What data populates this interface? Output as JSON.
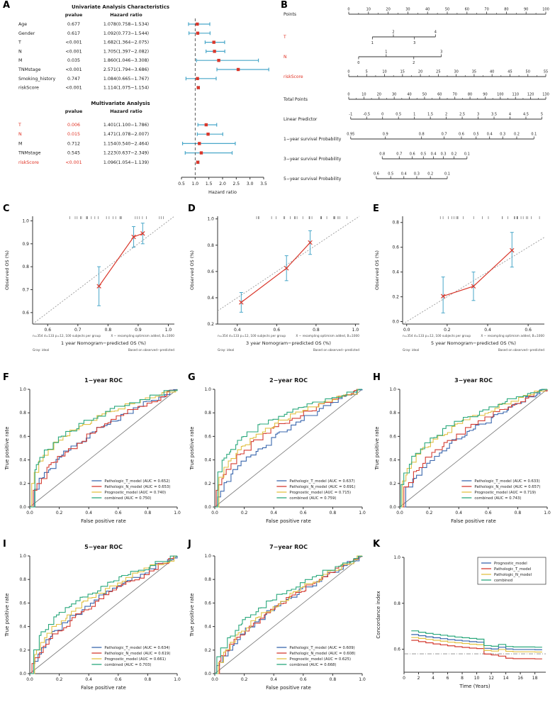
{
  "palette": {
    "blue": "#3a67ad",
    "red": "#d43c32",
    "yellow": "#e2c144",
    "green": "#2aa87c",
    "forest_marker": "#d9372b",
    "forest_whisker": "#49a7c9",
    "cal_line": "#d9372b",
    "cal_err": "#49a7c9",
    "sig_red": "#e03022",
    "text": "#1a1a1a"
  },
  "chart_data": [
    {
      "panel": "A",
      "type": "forest",
      "xlabel": "Hazard ratio",
      "x_ticks": [
        0.5,
        1.0,
        1.5,
        2.0,
        2.5,
        3.0,
        3.5
      ],
      "ref_line": 1.0,
      "sections": [
        {
          "title": "Univariate Analysis Characteristics",
          "col_pvalue": "pvalue",
          "col_hr": "Hazard ratio",
          "rows": [
            {
              "name": "Age",
              "pvalue": "0.677",
              "hr_text": "1.078(0.758−1.534)",
              "hr": 1.078,
              "lo": 0.758,
              "hi": 1.534,
              "sig": false
            },
            {
              "name": "Gender",
              "pvalue": "0.617",
              "hr_text": "1.092(0.773−1.544)",
              "hr": 1.092,
              "lo": 0.773,
              "hi": 1.544,
              "sig": false
            },
            {
              "name": "T",
              "pvalue": "<0.001",
              "hr_text": "1.682(1.364−2.075)",
              "hr": 1.682,
              "lo": 1.364,
              "hi": 2.075,
              "sig": false
            },
            {
              "name": "N",
              "pvalue": "<0.001",
              "hr_text": "1.705(1.397−2.082)",
              "hr": 1.705,
              "lo": 1.397,
              "hi": 2.082,
              "sig": false
            },
            {
              "name": "M",
              "pvalue": "0.035",
              "hr_text": "1.860(1.046−3.308)",
              "hr": 1.86,
              "lo": 1.046,
              "hi": 3.308,
              "sig": false
            },
            {
              "name": "TNMstage",
              "pvalue": "<0.001",
              "hr_text": "2.571(1.794−3.686)",
              "hr": 2.571,
              "lo": 1.794,
              "hi": 3.686,
              "sig": false
            },
            {
              "name": "Smoking_history",
              "pvalue": "0.747",
              "hr_text": "1.084(0.665−1.767)",
              "hr": 1.084,
              "lo": 0.665,
              "hi": 1.767,
              "sig": false
            },
            {
              "name": "riskScore",
              "pvalue": "<0.001",
              "hr_text": "1.114(1.075−1.154)",
              "hr": 1.114,
              "lo": 1.075,
              "hi": 1.154,
              "sig": false
            }
          ]
        },
        {
          "title": "Multivariate Analysis",
          "col_pvalue": "pvalue",
          "col_hr": "Hazard ratio",
          "rows": [
            {
              "name": "T",
              "pvalue": "0.006",
              "hr_text": "1.401(1.100−1.786)",
              "hr": 1.401,
              "lo": 1.1,
              "hi": 1.786,
              "sig": true
            },
            {
              "name": "N",
              "pvalue": "0.015",
              "hr_text": "1.471(1.078−2.007)",
              "hr": 1.471,
              "lo": 1.078,
              "hi": 2.007,
              "sig": true
            },
            {
              "name": "M",
              "pvalue": "0.712",
              "hr_text": "1.154(0.540−2.464)",
              "hr": 1.154,
              "lo": 0.54,
              "hi": 2.464,
              "sig": false
            },
            {
              "name": "TNMstage",
              "pvalue": "0.545",
              "hr_text": "1.223(0.637−2.349)",
              "hr": 1.223,
              "lo": 0.637,
              "hi": 2.349,
              "sig": false
            },
            {
              "name": "riskScore",
              "pvalue": "<0.001",
              "hr_text": "1.096(1.054−1.139)",
              "hr": 1.096,
              "lo": 1.054,
              "hi": 1.139,
              "sig": true
            }
          ]
        }
      ]
    },
    {
      "panel": "B",
      "type": "nomogram",
      "rows": [
        {
          "label": "Points",
          "red": false,
          "kind": "linear",
          "min": 0,
          "max": 100,
          "step": 10,
          "span": [
            0,
            1
          ],
          "minor": true
        },
        {
          "label": "T",
          "red": true,
          "kind": "alt",
          "values": [
            "1",
            "2",
            "3",
            "4"
          ],
          "span": [
            0.12,
            0.44
          ]
        },
        {
          "label": "N",
          "red": true,
          "kind": "alt",
          "values": [
            "0",
            "1",
            "2",
            "3"
          ],
          "span": [
            0.05,
            0.47
          ]
        },
        {
          "label": "riskScore",
          "red": true,
          "kind": "linear",
          "min": 0,
          "max": 55,
          "step": 5,
          "span": [
            0,
            1
          ],
          "minor": true
        },
        {
          "label": "Total Points",
          "red": false,
          "kind": "linear",
          "min": 0,
          "max": 130,
          "step": 10,
          "span": [
            0,
            1
          ],
          "minor": true
        },
        {
          "label": "Linear Predictor",
          "red": false,
          "kind": "linear",
          "min": -1,
          "max": 5,
          "step": 0.5,
          "span": [
            0.01,
            0.98
          ],
          "minor": false
        },
        {
          "label": "1−year survival Probability",
          "red": false,
          "kind": "surv",
          "values": [
            0.95,
            0.9,
            0.8,
            0.7,
            0.6,
            0.5,
            0.4,
            0.3,
            0.2,
            0.1
          ],
          "span": [
            0.01,
            0.94
          ]
        },
        {
          "label": "3−year survival Probability",
          "red": false,
          "kind": "surv",
          "values": [
            0.8,
            0.7,
            0.6,
            0.5,
            0.4,
            0.3,
            0.2,
            0.1
          ],
          "span": [
            0.17,
            0.6
          ]
        },
        {
          "label": "5−year survival Probability",
          "red": false,
          "kind": "surv",
          "values": [
            0.6,
            0.5,
            0.4,
            0.3,
            0.2,
            0.1
          ],
          "span": [
            0.14,
            0.5
          ]
        }
      ]
    },
    {
      "panel": "C",
      "type": "calibration",
      "xlabel": "1 year Nomogram−predicted OS (%)",
      "ylabel": "Observed OS (%)",
      "xlim": [
        0.55,
        1.02
      ],
      "ylim": [
        0.55,
        1.02
      ],
      "xticks": [
        0.6,
        0.7,
        0.8,
        0.9,
        1.0
      ],
      "yticks": [
        0.6,
        0.7,
        0.8,
        0.9,
        1.0
      ],
      "points": [
        {
          "x": 0.77,
          "y": 0.715,
          "lo": 0.63,
          "hi": 0.8
        },
        {
          "x": 0.885,
          "y": 0.93,
          "lo": 0.885,
          "hi": 0.975
        },
        {
          "x": 0.915,
          "y": 0.945,
          "lo": 0.9,
          "hi": 0.99
        }
      ],
      "caption_left": [
        "n=354 d=133 p=12, 100 subjects per group",
        "Gray: ideal"
      ],
      "caption_right": [
        "X − resampling optimism added, B=1000",
        "Based on observed−predicted"
      ]
    },
    {
      "panel": "D",
      "type": "calibration",
      "xlabel": "3 year Nomogram−predicted OS (%)",
      "ylabel": "Observed OS (%)",
      "xlim": [
        0.3,
        1.02
      ],
      "ylim": [
        0.2,
        1.02
      ],
      "xticks": [
        0.4,
        0.6,
        0.8,
        1.0
      ],
      "yticks": [
        0.2,
        0.4,
        0.6,
        0.8,
        1.0
      ],
      "points": [
        {
          "x": 0.42,
          "y": 0.365,
          "lo": 0.29,
          "hi": 0.44
        },
        {
          "x": 0.65,
          "y": 0.625,
          "lo": 0.53,
          "hi": 0.72
        },
        {
          "x": 0.77,
          "y": 0.82,
          "lo": 0.73,
          "hi": 0.91
        }
      ],
      "caption_left": [
        "n=354 d=133 p=12, 100 subjects per group",
        "Gray: ideal"
      ],
      "caption_right": [
        "X − resampling optimism added, B=1000",
        "Based on observed−predicted"
      ]
    },
    {
      "panel": "E",
      "type": "calibration",
      "xlabel": "5 year Nomogram−predicted OS (%)",
      "ylabel": "Observed OS (%)",
      "xlim": [
        -0.02,
        0.68
      ],
      "ylim": [
        -0.02,
        0.85
      ],
      "xticks": [
        0.0,
        0.2,
        0.4,
        0.6
      ],
      "yticks": [
        0.0,
        0.2,
        0.4,
        0.6,
        0.8
      ],
      "points": [
        {
          "x": 0.18,
          "y": 0.205,
          "lo": 0.07,
          "hi": 0.36
        },
        {
          "x": 0.33,
          "y": 0.285,
          "lo": 0.17,
          "hi": 0.4
        },
        {
          "x": 0.52,
          "y": 0.575,
          "lo": 0.44,
          "hi": 0.72
        }
      ],
      "caption_left": [
        "n=354 d=133 p=12, 100 subjects per group",
        "Gray: ideal"
      ],
      "caption_right": [
        "X − resampling optimism added, B=1000",
        "Based on observed−predicted"
      ]
    },
    {
      "panel": "F",
      "type": "roc",
      "title": "1−year ROC",
      "xlabel": "False positive rate",
      "ylabel": "True positive rate",
      "series": [
        {
          "label": "Pathologic_T_model (AUC = 0.652)",
          "auc": 0.652,
          "color": "blue"
        },
        {
          "label": "Pathologic_N_model (AUC = 0.653)",
          "auc": 0.653,
          "color": "red"
        },
        {
          "label": "Prognostic_model (AUC = 0.740)",
          "auc": 0.74,
          "color": "yellow"
        },
        {
          "label": "combined (AUC = 0.750)",
          "auc": 0.75,
          "color": "green"
        }
      ]
    },
    {
      "panel": "G",
      "type": "roc",
      "title": "2−year ROC",
      "xlabel": "False positive rate",
      "ylabel": "True positive rate",
      "series": [
        {
          "label": "Pathologic_T_model (AUC = 0.637)",
          "auc": 0.637,
          "color": "blue"
        },
        {
          "label": "Pathologic_N_model (AUC = 0.691)",
          "auc": 0.691,
          "color": "red"
        },
        {
          "label": "Prognostic_model (AUC = 0.715)",
          "auc": 0.715,
          "color": "yellow"
        },
        {
          "label": "combined (AUC = 0.759)",
          "auc": 0.759,
          "color": "green"
        }
      ]
    },
    {
      "panel": "H",
      "type": "roc",
      "title": "3−year ROC",
      "xlabel": "False positive rate",
      "ylabel": "True positive rate",
      "series": [
        {
          "label": "Pathologic_T_model (AUC = 0.633)",
          "auc": 0.633,
          "color": "blue"
        },
        {
          "label": "Pathologic_N_model (AUC = 0.657)",
          "auc": 0.657,
          "color": "red"
        },
        {
          "label": "Prognostic_model (AUC = 0.719)",
          "auc": 0.719,
          "color": "yellow"
        },
        {
          "label": "combined (AUC = 0.743)",
          "auc": 0.743,
          "color": "green"
        }
      ]
    },
    {
      "panel": "I",
      "type": "roc",
      "title": "5−year ROC",
      "xlabel": "False positive rate",
      "ylabel": "True positive rate",
      "series": [
        {
          "label": "Pathologic_T_model (AUC = 0.634)",
          "auc": 0.634,
          "color": "blue"
        },
        {
          "label": "Pathologic_N_model (AUC = 0.619)",
          "auc": 0.619,
          "color": "red"
        },
        {
          "label": "Prognostic_model (AUC = 0.661)",
          "auc": 0.661,
          "color": "yellow"
        },
        {
          "label": "combined (AUC = 0.703)",
          "auc": 0.703,
          "color": "green"
        }
      ]
    },
    {
      "panel": "J",
      "type": "roc",
      "title": "7−year ROC",
      "xlabel": "False positive rate",
      "ylabel": "True positive rate",
      "series": [
        {
          "label": "Pathologic_T_model (AUC = 0.609)",
          "auc": 0.609,
          "color": "blue"
        },
        {
          "label": "Pathologic_N_model (AUC = 0.608)",
          "auc": 0.608,
          "color": "red"
        },
        {
          "label": "Prognostic_model (AUC = 0.625)",
          "auc": 0.625,
          "color": "yellow"
        },
        {
          "label": "combined (AUC = 0.668)",
          "auc": 0.668,
          "color": "green"
        }
      ]
    },
    {
      "panel": "K",
      "type": "cindex",
      "xlabel": "Time (Years)",
      "ylabel": "Concordance index",
      "xticks": [
        0,
        2,
        4,
        6,
        8,
        10,
        12,
        14,
        16,
        18
      ],
      "ylim": [
        0.5,
        1.0
      ],
      "yticks": [
        0.6,
        0.8,
        1.0
      ],
      "ref_line": 0.58,
      "times": [
        1,
        2,
        3,
        4,
        5,
        6,
        7,
        8,
        9,
        10,
        11,
        12,
        13,
        14,
        15,
        16,
        17,
        18,
        19
      ],
      "series": [
        {
          "label": "Prognostic_model",
          "color": "blue",
          "values": [
            0.664,
            0.659,
            0.654,
            0.65,
            0.646,
            0.642,
            0.639,
            0.636,
            0.633,
            0.631,
            0.604,
            0.601,
            0.609,
            0.601,
            0.599,
            0.599,
            0.599,
            0.598,
            0.598
          ]
        },
        {
          "label": "Pathologic_T_model",
          "color": "red",
          "values": [
            0.639,
            0.633,
            0.628,
            0.623,
            0.619,
            0.615,
            0.611,
            0.608,
            0.605,
            0.603,
            0.579,
            0.575,
            0.57,
            0.561,
            0.559,
            0.559,
            0.559,
            0.558,
            0.558
          ]
        },
        {
          "label": "Pathologic_N_model",
          "color": "yellow",
          "values": [
            0.651,
            0.647,
            0.643,
            0.639,
            0.635,
            0.631,
            0.628,
            0.625,
            0.622,
            0.62,
            0.595,
            0.592,
            0.599,
            0.591,
            0.589,
            0.589,
            0.589,
            0.588,
            0.588
          ]
        },
        {
          "label": "combined",
          "color": "green",
          "values": [
            0.68,
            0.674,
            0.669,
            0.665,
            0.661,
            0.657,
            0.653,
            0.65,
            0.647,
            0.644,
            0.616,
            0.613,
            0.621,
            0.612,
            0.61,
            0.61,
            0.61,
            0.609,
            0.609
          ]
        }
      ]
    }
  ]
}
